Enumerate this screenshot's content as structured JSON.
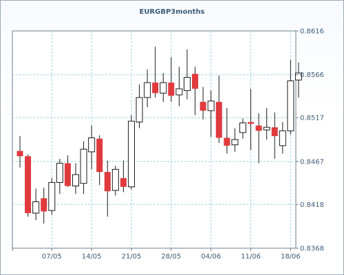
{
  "chart_data": {
    "type": "candlestick",
    "title": "EURGBP3months",
    "colors": {
      "up_fill": "#ffffff",
      "down_fill": "#e03a3e",
      "candle_stroke": "#1a1a1a",
      "grid": "#9fd2e0",
      "axis": "#6a7b8d",
      "text": "#3d5c78"
    },
    "ylim": [
      0.8368,
      0.8616
    ],
    "yticks": [
      "0.8616",
      "0.8566",
      "0.8517",
      "0.8467",
      "0.8418",
      "0.8368"
    ],
    "xticks": [
      {
        "index": 4,
        "label": "07/05"
      },
      {
        "index": 9,
        "label": "14/05"
      },
      {
        "index": 14,
        "label": "21/05"
      },
      {
        "index": 19,
        "label": "28/05"
      },
      {
        "index": 24,
        "label": "04/06"
      },
      {
        "index": 29,
        "label": "11/06"
      },
      {
        "index": 34,
        "label": "18/06"
      }
    ],
    "grid": true,
    "candles": [
      {
        "open": 0.8479,
        "high": 0.8496,
        "low": 0.846,
        "close": 0.8473
      },
      {
        "open": 0.8473,
        "high": 0.8475,
        "low": 0.8404,
        "close": 0.8408
      },
      {
        "open": 0.8408,
        "high": 0.8436,
        "low": 0.84,
        "close": 0.8421
      },
      {
        "open": 0.8425,
        "high": 0.8437,
        "low": 0.8396,
        "close": 0.841
      },
      {
        "open": 0.8411,
        "high": 0.8448,
        "low": 0.8406,
        "close": 0.8443
      },
      {
        "open": 0.8443,
        "high": 0.847,
        "low": 0.843,
        "close": 0.8465
      },
      {
        "open": 0.8465,
        "high": 0.8474,
        "low": 0.8438,
        "close": 0.8439
      },
      {
        "open": 0.8439,
        "high": 0.8465,
        "low": 0.843,
        "close": 0.8452
      },
      {
        "open": 0.8442,
        "high": 0.849,
        "low": 0.843,
        "close": 0.8481
      },
      {
        "open": 0.8478,
        "high": 0.8508,
        "low": 0.8458,
        "close": 0.8494
      },
      {
        "open": 0.8493,
        "high": 0.8497,
        "low": 0.844,
        "close": 0.8455
      },
      {
        "open": 0.8455,
        "high": 0.8468,
        "low": 0.8404,
        "close": 0.8433
      },
      {
        "open": 0.8434,
        "high": 0.8462,
        "low": 0.8428,
        "close": 0.8458
      },
      {
        "open": 0.8448,
        "high": 0.8468,
        "low": 0.8432,
        "close": 0.8438
      },
      {
        "open": 0.8438,
        "high": 0.852,
        "low": 0.8435,
        "close": 0.8513
      },
      {
        "open": 0.8512,
        "high": 0.8555,
        "low": 0.8505,
        "close": 0.854
      },
      {
        "open": 0.854,
        "high": 0.8572,
        "low": 0.8529,
        "close": 0.8557
      },
      {
        "open": 0.8557,
        "high": 0.8598,
        "low": 0.854,
        "close": 0.8545
      },
      {
        "open": 0.8545,
        "high": 0.8568,
        "low": 0.8535,
        "close": 0.8557
      },
      {
        "open": 0.8557,
        "high": 0.8586,
        "low": 0.8535,
        "close": 0.8542
      },
      {
        "open": 0.8543,
        "high": 0.8575,
        "low": 0.853,
        "close": 0.855
      },
      {
        "open": 0.8548,
        "high": 0.8595,
        "low": 0.8538,
        "close": 0.8563
      },
      {
        "open": 0.8567,
        "high": 0.8575,
        "low": 0.852,
        "close": 0.855
      },
      {
        "open": 0.8535,
        "high": 0.8552,
        "low": 0.8515,
        "close": 0.8525
      },
      {
        "open": 0.8525,
        "high": 0.8548,
        "low": 0.8495,
        "close": 0.8536
      },
      {
        "open": 0.8535,
        "high": 0.8565,
        "low": 0.8488,
        "close": 0.8494
      },
      {
        "open": 0.8494,
        "high": 0.8528,
        "low": 0.8476,
        "close": 0.8485
      },
      {
        "open": 0.8486,
        "high": 0.8505,
        "low": 0.8478,
        "close": 0.8492
      },
      {
        "open": 0.85,
        "high": 0.8516,
        "low": 0.8493,
        "close": 0.8511
      },
      {
        "open": 0.8512,
        "high": 0.855,
        "low": 0.848,
        "close": 0.851
      },
      {
        "open": 0.8508,
        "high": 0.8522,
        "low": 0.8465,
        "close": 0.8502
      },
      {
        "open": 0.8503,
        "high": 0.8528,
        "low": 0.8492,
        "close": 0.8506
      },
      {
        "open": 0.8506,
        "high": 0.8523,
        "low": 0.847,
        "close": 0.8496
      },
      {
        "open": 0.8485,
        "high": 0.8512,
        "low": 0.8476,
        "close": 0.8502
      },
      {
        "open": 0.8502,
        "high": 0.8583,
        "low": 0.8498,
        "close": 0.8559
      },
      {
        "open": 0.856,
        "high": 0.858,
        "low": 0.854,
        "close": 0.8568
      }
    ]
  }
}
